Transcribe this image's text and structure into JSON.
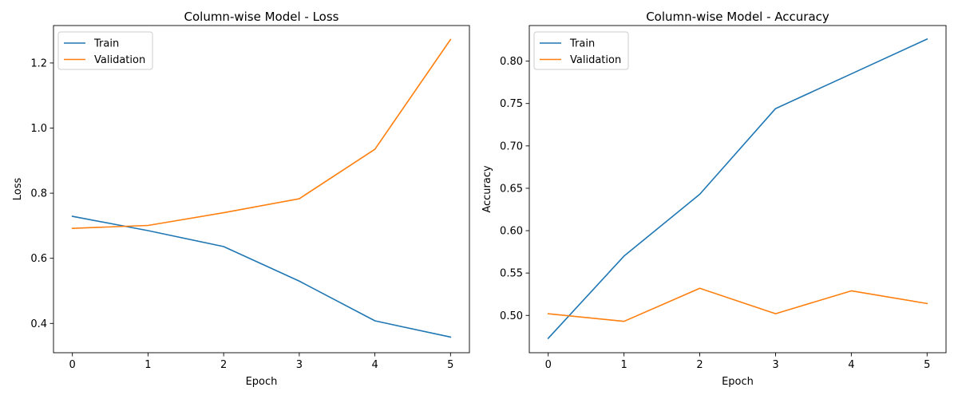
{
  "colors": {
    "train": "#1f77b4",
    "validation": "#ff7f0e",
    "axis": "#000000",
    "legend_border": "#cccccc"
  },
  "chart_data": [
    {
      "type": "line",
      "title": "Column-wise Model - Loss",
      "xlabel": "Epoch",
      "ylabel": "Loss",
      "x": [
        0,
        1,
        2,
        3,
        4,
        5
      ],
      "xticks": [
        "0",
        "1",
        "2",
        "3",
        "4",
        "5"
      ],
      "yticks": [
        "0.4",
        "0.6",
        "0.8",
        "1.0",
        "1.2"
      ],
      "ylim": [
        0.31,
        1.315
      ],
      "xlim": [
        -0.25,
        5.25
      ],
      "grid": false,
      "legend": "top-left",
      "series": [
        {
          "name": "Train",
          "color_key": "train",
          "values": [
            0.729,
            0.685,
            0.636,
            0.53,
            0.408,
            0.358
          ]
        },
        {
          "name": "Validation",
          "color_key": "validation",
          "values": [
            0.692,
            0.701,
            0.74,
            0.783,
            0.935,
            1.272
          ]
        }
      ]
    },
    {
      "type": "line",
      "title": "Column-wise Model - Accuracy",
      "xlabel": "Epoch",
      "ylabel": "Accuracy",
      "x": [
        0,
        1,
        2,
        3,
        4,
        5
      ],
      "xticks": [
        "0",
        "1",
        "2",
        "3",
        "4",
        "5"
      ],
      "yticks": [
        "0.50",
        "0.55",
        "0.60",
        "0.65",
        "0.70",
        "0.75",
        "0.80"
      ],
      "ylim": [
        0.456,
        0.842
      ],
      "xlim": [
        -0.25,
        5.25
      ],
      "grid": false,
      "legend": "top-left",
      "series": [
        {
          "name": "Train",
          "color_key": "train",
          "values": [
            0.473,
            0.57,
            0.643,
            0.744,
            0.785,
            0.826
          ]
        },
        {
          "name": "Validation",
          "color_key": "validation",
          "values": [
            0.502,
            0.493,
            0.532,
            0.502,
            0.529,
            0.514
          ]
        }
      ]
    }
  ]
}
